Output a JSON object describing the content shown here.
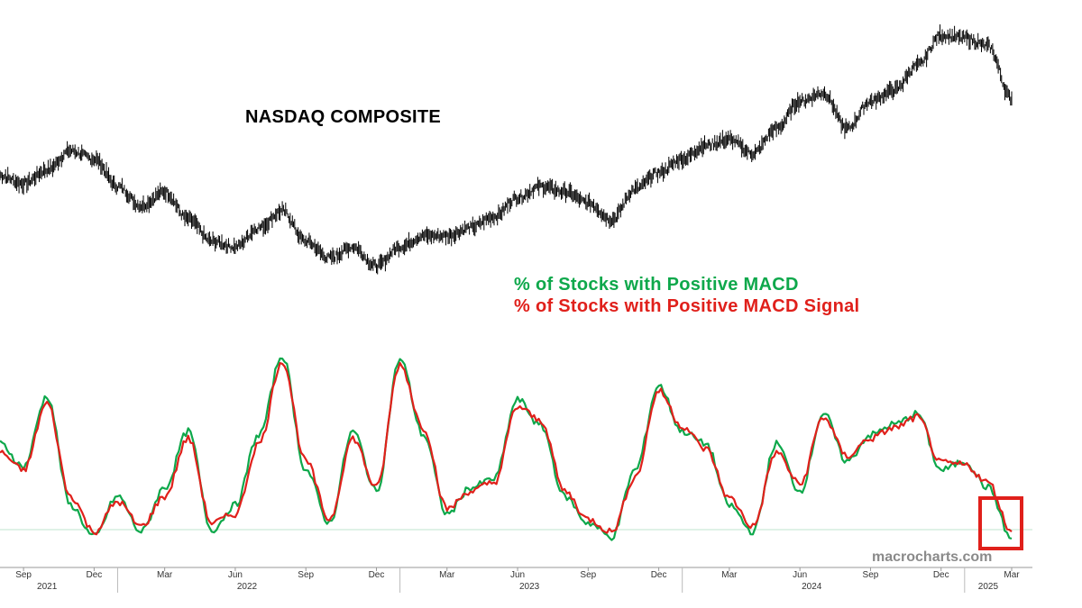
{
  "chart_data": {
    "type": "line",
    "title": "NASDAQ COMPOSITE",
    "legend": [
      {
        "label": "% of Stocks with Positive MACD",
        "color": "#0ea84b"
      },
      {
        "label": "% of Stocks with Positive MACD Signal",
        "color": "#e0201b"
      }
    ],
    "watermark": "macrocharts.com",
    "x_month_labels": [
      "Sep",
      "Dec",
      "Mar",
      "Jun",
      "Sep",
      "Dec",
      "Mar",
      "Jun",
      "Sep",
      "Dec",
      "Mar",
      "Jun",
      "Sep",
      "Dec",
      "Mar"
    ],
    "x_year_labels": [
      "2021",
      "2022",
      "2023",
      "2024",
      "2025"
    ],
    "x_range": [
      "2021-08",
      "2025-03"
    ],
    "price_series": {
      "name": "NASDAQ COMPOSITE",
      "color": "#000000",
      "points": [
        [
          "2021-08",
          0.46
        ],
        [
          "2021-09",
          0.43
        ],
        [
          "2021-10",
          0.48
        ],
        [
          "2021-11",
          0.55
        ],
        [
          "2021-12",
          0.52
        ],
        [
          "2022-01",
          0.42
        ],
        [
          "2022-02",
          0.35
        ],
        [
          "2022-03",
          0.4
        ],
        [
          "2022-04",
          0.3
        ],
        [
          "2022-05",
          0.22
        ],
        [
          "2022-06",
          0.2
        ],
        [
          "2022-07",
          0.27
        ],
        [
          "2022-08",
          0.33
        ],
        [
          "2022-09",
          0.22
        ],
        [
          "2022-10",
          0.16
        ],
        [
          "2022-11",
          0.2
        ],
        [
          "2022-12",
          0.13
        ],
        [
          "2023-01",
          0.2
        ],
        [
          "2023-02",
          0.24
        ],
        [
          "2023-03",
          0.24
        ],
        [
          "2023-04",
          0.27
        ],
        [
          "2023-05",
          0.31
        ],
        [
          "2023-06",
          0.38
        ],
        [
          "2023-07",
          0.42
        ],
        [
          "2023-08",
          0.4
        ],
        [
          "2023-09",
          0.36
        ],
        [
          "2023-10",
          0.3
        ],
        [
          "2023-11",
          0.41
        ],
        [
          "2023-12",
          0.47
        ],
        [
          "2024-01",
          0.52
        ],
        [
          "2024-02",
          0.57
        ],
        [
          "2024-03",
          0.59
        ],
        [
          "2024-04",
          0.54
        ],
        [
          "2024-05",
          0.63
        ],
        [
          "2024-06",
          0.73
        ],
        [
          "2024-07",
          0.76
        ],
        [
          "2024-08",
          0.63
        ],
        [
          "2024-09",
          0.73
        ],
        [
          "2024-10",
          0.77
        ],
        [
          "2024-11",
          0.86
        ],
        [
          "2024-12",
          0.97
        ],
        [
          "2025-01",
          0.96
        ],
        [
          "2025-02",
          0.93
        ],
        [
          "2025-03",
          0.74
        ]
      ]
    },
    "indicator_series": [
      {
        "name": "% of Stocks with Positive MACD",
        "color": "#0ea84b",
        "points": [
          [
            "2021-08",
            0.55
          ],
          [
            "2021-09",
            0.42
          ],
          [
            "2021-10",
            0.82
          ],
          [
            "2021-11",
            0.2
          ],
          [
            "2021-12",
            0.02
          ],
          [
            "2022-01",
            0.25
          ],
          [
            "2022-02",
            0.05
          ],
          [
            "2022-03",
            0.3
          ],
          [
            "2022-04",
            0.62
          ],
          [
            "2022-05",
            0.06
          ],
          [
            "2022-06",
            0.2
          ],
          [
            "2022-07",
            0.6
          ],
          [
            "2022-08",
            1.05
          ],
          [
            "2022-09",
            0.4
          ],
          [
            "2022-10",
            0.1
          ],
          [
            "2022-11",
            0.62
          ],
          [
            "2022-12",
            0.28
          ],
          [
            "2023-01",
            1.03
          ],
          [
            "2023-02",
            0.6
          ],
          [
            "2023-03",
            0.15
          ],
          [
            "2023-04",
            0.3
          ],
          [
            "2023-05",
            0.35
          ],
          [
            "2023-06",
            0.8
          ],
          [
            "2023-07",
            0.65
          ],
          [
            "2023-08",
            0.25
          ],
          [
            "2023-09",
            0.1
          ],
          [
            "2023-10",
            0.02
          ],
          [
            "2023-11",
            0.4
          ],
          [
            "2023-12",
            0.88
          ],
          [
            "2024-01",
            0.62
          ],
          [
            "2024-02",
            0.55
          ],
          [
            "2024-03",
            0.2
          ],
          [
            "2024-04",
            0.05
          ],
          [
            "2024-05",
            0.55
          ],
          [
            "2024-06",
            0.28
          ],
          [
            "2024-07",
            0.72
          ],
          [
            "2024-08",
            0.45
          ],
          [
            "2024-09",
            0.6
          ],
          [
            "2024-10",
            0.66
          ],
          [
            "2024-11",
            0.72
          ],
          [
            "2024-12",
            0.4
          ],
          [
            "2025-01",
            0.45
          ],
          [
            "2025-02",
            0.3
          ],
          [
            "2025-03",
            0.01
          ]
        ]
      },
      {
        "name": "% of Stocks with Positive MACD Signal",
        "color": "#e0201b",
        "points": [
          [
            "2021-08",
            0.5
          ],
          [
            "2021-09",
            0.4
          ],
          [
            "2021-10",
            0.78
          ],
          [
            "2021-11",
            0.25
          ],
          [
            "2021-12",
            0.05
          ],
          [
            "2022-01",
            0.22
          ],
          [
            "2022-02",
            0.08
          ],
          [
            "2022-03",
            0.25
          ],
          [
            "2022-04",
            0.58
          ],
          [
            "2022-05",
            0.1
          ],
          [
            "2022-06",
            0.15
          ],
          [
            "2022-07",
            0.55
          ],
          [
            "2022-08",
            1.02
          ],
          [
            "2022-09",
            0.45
          ],
          [
            "2022-10",
            0.12
          ],
          [
            "2022-11",
            0.58
          ],
          [
            "2022-12",
            0.3
          ],
          [
            "2023-01",
            1.0
          ],
          [
            "2023-02",
            0.64
          ],
          [
            "2023-03",
            0.18
          ],
          [
            "2023-04",
            0.28
          ],
          [
            "2023-05",
            0.33
          ],
          [
            "2023-06",
            0.76
          ],
          [
            "2023-07",
            0.68
          ],
          [
            "2023-08",
            0.28
          ],
          [
            "2023-09",
            0.12
          ],
          [
            "2023-10",
            0.05
          ],
          [
            "2023-11",
            0.36
          ],
          [
            "2023-12",
            0.85
          ],
          [
            "2024-01",
            0.65
          ],
          [
            "2024-02",
            0.52
          ],
          [
            "2024-03",
            0.24
          ],
          [
            "2024-04",
            0.08
          ],
          [
            "2024-05",
            0.5
          ],
          [
            "2024-06",
            0.32
          ],
          [
            "2024-07",
            0.7
          ],
          [
            "2024-08",
            0.48
          ],
          [
            "2024-09",
            0.58
          ],
          [
            "2024-10",
            0.64
          ],
          [
            "2024-11",
            0.7
          ],
          [
            "2024-12",
            0.44
          ],
          [
            "2025-01",
            0.43
          ],
          [
            "2025-02",
            0.33
          ],
          [
            "2025-03",
            0.05
          ]
        ]
      }
    ],
    "zero_line_color": "#bfe6cf",
    "highlight_box_color": "#e0201b"
  }
}
